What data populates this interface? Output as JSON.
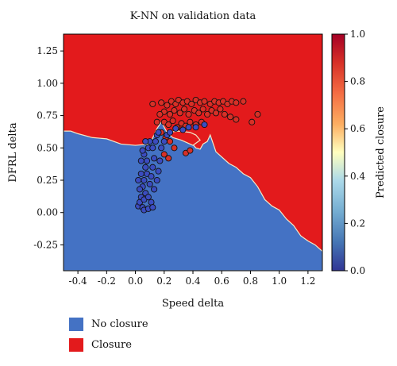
{
  "chart_data": {
    "type": "scatter",
    "title": "K-NN on validation data",
    "xlabel": "Speed delta",
    "ylabel": "DFRL delta",
    "xlim": [
      -0.5,
      1.3
    ],
    "ylim": [
      -0.45,
      1.38
    ],
    "xticks": [
      "-0.4",
      "-0.2",
      "0.0",
      "0.2",
      "0.4",
      "0.6",
      "0.8",
      "1.0",
      "1.2"
    ],
    "yticks": [
      "-0.25",
      "0.00",
      "0.25",
      "0.50",
      "0.75",
      "1.00",
      "1.25"
    ],
    "colorbar": {
      "label": "Predicted closure",
      "range": [
        0.0,
        1.0
      ],
      "ticks": [
        "0.0",
        "0.2",
        "0.4",
        "0.6",
        "0.8",
        "1.0"
      ]
    },
    "regions": [
      {
        "name": "No closure",
        "color": "#4472c4",
        "boundary": [
          [
            -0.5,
            0.63
          ],
          [
            -0.45,
            0.63
          ],
          [
            -0.4,
            0.61
          ],
          [
            -0.3,
            0.58
          ],
          [
            -0.2,
            0.57
          ],
          [
            -0.1,
            0.53
          ],
          [
            0.0,
            0.52
          ],
          [
            0.1,
            0.53
          ],
          [
            0.15,
            0.65
          ],
          [
            0.18,
            0.7
          ],
          [
            0.22,
            0.62
          ],
          [
            0.3,
            0.6
          ],
          [
            0.38,
            0.55
          ],
          [
            0.42,
            0.5
          ],
          [
            0.45,
            0.49
          ],
          [
            0.47,
            0.53
          ],
          [
            0.5,
            0.55
          ],
          [
            0.52,
            0.6
          ],
          [
            0.56,
            0.47
          ],
          [
            0.6,
            0.43
          ],
          [
            0.65,
            0.38
          ],
          [
            0.7,
            0.35
          ],
          [
            0.75,
            0.3
          ],
          [
            0.8,
            0.27
          ],
          [
            0.85,
            0.2
          ],
          [
            0.9,
            0.1
          ],
          [
            0.95,
            0.05
          ],
          [
            1.0,
            0.02
          ],
          [
            1.05,
            -0.05
          ],
          [
            1.1,
            -0.1
          ],
          [
            1.15,
            -0.18
          ],
          [
            1.2,
            -0.22
          ],
          [
            1.25,
            -0.25
          ],
          [
            1.3,
            -0.3
          ]
        ]
      },
      {
        "name": "Closure",
        "color": "#e31a1c"
      }
    ],
    "island": [
      [
        0.22,
        0.62
      ],
      [
        0.3,
        0.63
      ],
      [
        0.38,
        0.62
      ],
      [
        0.42,
        0.6
      ],
      [
        0.45,
        0.56
      ],
      [
        0.4,
        0.52
      ],
      [
        0.32,
        0.56
      ],
      [
        0.26,
        0.58
      ]
    ],
    "series": [
      {
        "name": "Closure",
        "color": "#d73027",
        "points": [
          [
            0.12,
            0.84
          ],
          [
            0.18,
            0.85
          ],
          [
            0.22,
            0.83
          ],
          [
            0.25,
            0.86
          ],
          [
            0.28,
            0.84
          ],
          [
            0.3,
            0.87
          ],
          [
            0.33,
            0.85
          ],
          [
            0.36,
            0.86
          ],
          [
            0.39,
            0.84
          ],
          [
            0.42,
            0.87
          ],
          [
            0.45,
            0.85
          ],
          [
            0.48,
            0.86
          ],
          [
            0.52,
            0.84
          ],
          [
            0.55,
            0.86
          ],
          [
            0.58,
            0.85
          ],
          [
            0.61,
            0.86
          ],
          [
            0.64,
            0.84
          ],
          [
            0.67,
            0.86
          ],
          [
            0.7,
            0.85
          ],
          [
            0.75,
            0.86
          ],
          [
            0.2,
            0.78
          ],
          [
            0.24,
            0.76
          ],
          [
            0.27,
            0.79
          ],
          [
            0.31,
            0.77
          ],
          [
            0.34,
            0.8
          ],
          [
            0.37,
            0.76
          ],
          [
            0.41,
            0.79
          ],
          [
            0.44,
            0.77
          ],
          [
            0.47,
            0.8
          ],
          [
            0.5,
            0.76
          ],
          [
            0.53,
            0.79
          ],
          [
            0.56,
            0.77
          ],
          [
            0.59,
            0.8
          ],
          [
            0.62,
            0.76
          ],
          [
            0.66,
            0.74
          ],
          [
            0.7,
            0.72
          ],
          [
            0.2,
            0.7
          ],
          [
            0.23,
            0.68
          ],
          [
            0.26,
            0.71
          ],
          [
            0.29,
            0.66
          ],
          [
            0.32,
            0.69
          ],
          [
            0.35,
            0.67
          ],
          [
            0.38,
            0.7
          ],
          [
            0.42,
            0.68
          ],
          [
            0.46,
            0.7
          ],
          [
            0.18,
            0.62
          ],
          [
            0.21,
            0.58
          ],
          [
            0.24,
            0.55
          ],
          [
            0.27,
            0.5
          ],
          [
            0.2,
            0.45
          ],
          [
            0.23,
            0.42
          ],
          [
            0.35,
            0.46
          ],
          [
            0.38,
            0.48
          ],
          [
            0.15,
            0.7
          ],
          [
            0.17,
            0.76
          ],
          [
            0.81,
            0.7
          ],
          [
            0.85,
            0.76
          ]
        ]
      },
      {
        "name": "No closure",
        "color": "#3b4cc0",
        "points": [
          [
            0.02,
            0.05
          ],
          [
            0.03,
            0.08
          ],
          [
            0.04,
            0.12
          ],
          [
            0.05,
            0.04
          ],
          [
            0.06,
            0.1
          ],
          [
            0.07,
            0.15
          ],
          [
            0.05,
            0.2
          ],
          [
            0.06,
            0.25
          ],
          [
            0.04,
            0.3
          ],
          [
            0.07,
            0.35
          ],
          [
            0.08,
            0.4
          ],
          [
            0.06,
            0.45
          ],
          [
            0.09,
            0.5
          ],
          [
            0.1,
            0.55
          ],
          [
            0.08,
            0.3
          ],
          [
            0.1,
            0.22
          ],
          [
            0.11,
            0.28
          ],
          [
            0.12,
            0.35
          ],
          [
            0.13,
            0.42
          ],
          [
            0.12,
            0.5
          ],
          [
            0.14,
            0.55
          ],
          [
            0.15,
            0.6
          ],
          [
            0.16,
            0.62
          ],
          [
            0.03,
            0.18
          ],
          [
            0.02,
            0.25
          ],
          [
            0.09,
            0.12
          ],
          [
            0.11,
            0.08
          ],
          [
            0.13,
            0.18
          ],
          [
            0.15,
            0.25
          ],
          [
            0.16,
            0.32
          ],
          [
            0.17,
            0.4
          ],
          [
            0.04,
            0.4
          ],
          [
            0.05,
            0.48
          ],
          [
            0.07,
            0.55
          ],
          [
            0.18,
            0.5
          ],
          [
            0.2,
            0.55
          ],
          [
            0.22,
            0.6
          ],
          [
            0.24,
            0.62
          ],
          [
            0.28,
            0.65
          ],
          [
            0.33,
            0.64
          ],
          [
            0.37,
            0.66
          ],
          [
            0.42,
            0.66
          ],
          [
            0.48,
            0.68
          ],
          [
            0.06,
            0.02
          ],
          [
            0.09,
            0.03
          ],
          [
            0.12,
            0.04
          ]
        ]
      }
    ]
  },
  "legend": [
    {
      "label": "No closure",
      "color": "#4472c4"
    },
    {
      "label": "Closure",
      "color": "#e31a1c"
    }
  ]
}
